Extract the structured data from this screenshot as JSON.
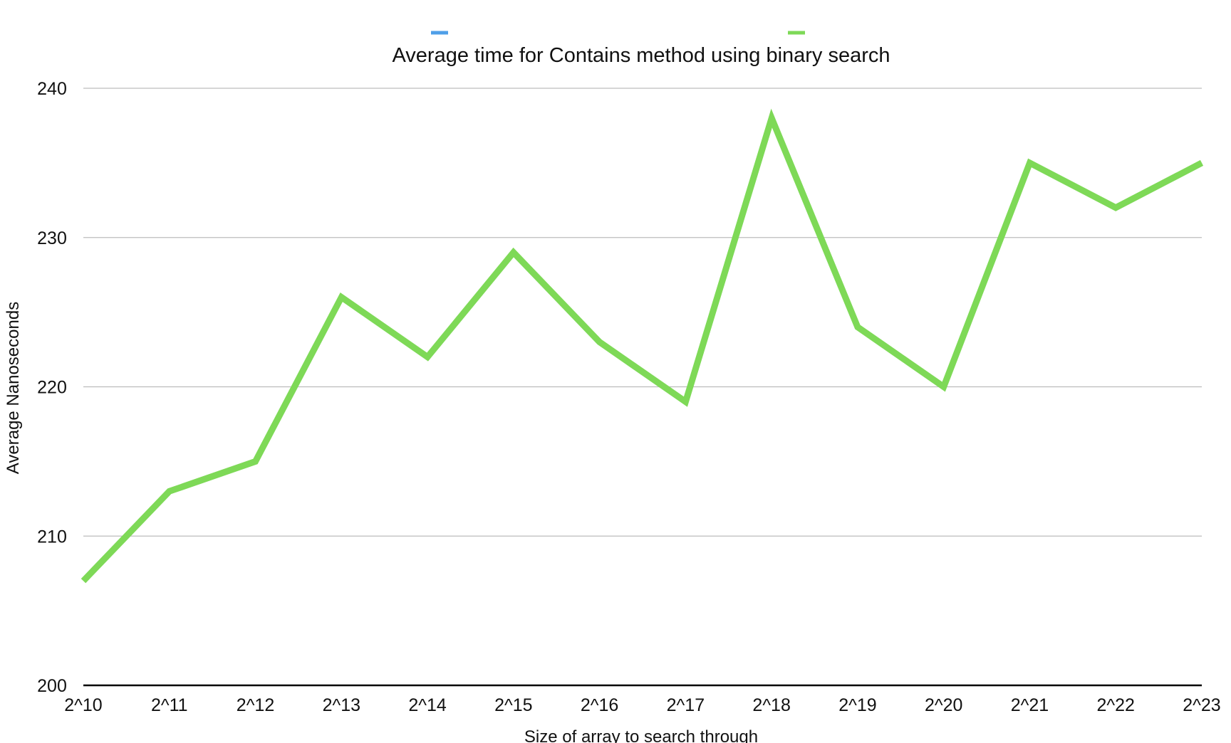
{
  "chart_data": {
    "type": "line",
    "title": "Average time for Contains method using binary search",
    "xlabel": "Size of array to search through",
    "ylabel": "Average Nanoseconds",
    "categories": [
      "2^10",
      "2^11",
      "2^12",
      "2^13",
      "2^14",
      "2^15",
      "2^16",
      "2^17",
      "2^18",
      "2^19",
      "2^20",
      "2^21",
      "2^22",
      "2^23"
    ],
    "y_ticks": [
      "200",
      "210",
      "220",
      "230",
      "240"
    ],
    "ylim": [
      200,
      240
    ],
    "grid": true,
    "legend_placement": "top",
    "legend": [
      {
        "color": "#4f9fe8"
      },
      {
        "color": "#7ed957"
      }
    ],
    "series": [
      {
        "color": "#7ed957",
        "values": [
          207,
          213,
          215,
          226,
          222,
          229,
          223,
          219,
          238,
          224,
          220,
          235,
          232,
          235
        ]
      }
    ]
  }
}
